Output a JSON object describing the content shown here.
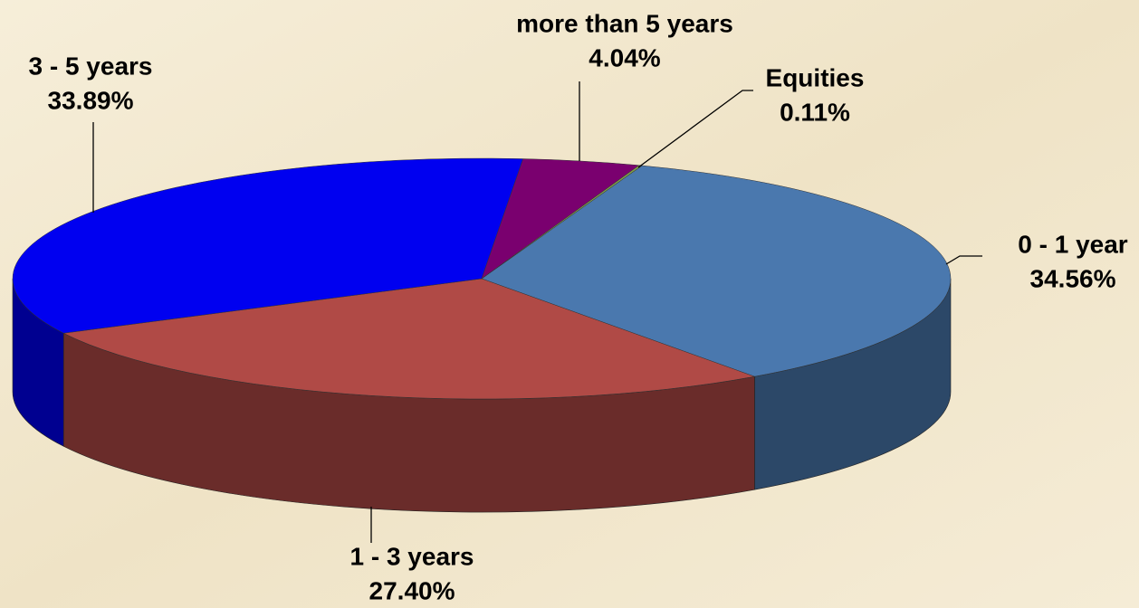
{
  "chart_data": {
    "type": "pie3d",
    "categories": [
      "0 - 1 year",
      "1 - 3 years",
      "3 - 5 years",
      "more than 5 years",
      "Equities"
    ],
    "values": [
      34.56,
      27.4,
      33.89,
      4.04,
      0.11
    ],
    "value_labels": [
      "34.56%",
      "27.40%",
      "33.89%",
      "4.04%",
      "0.11%"
    ],
    "colors": [
      "#4a78ae",
      "#b04a46",
      "#0000f0",
      "#7a006f",
      "#7f9c4a"
    ]
  }
}
